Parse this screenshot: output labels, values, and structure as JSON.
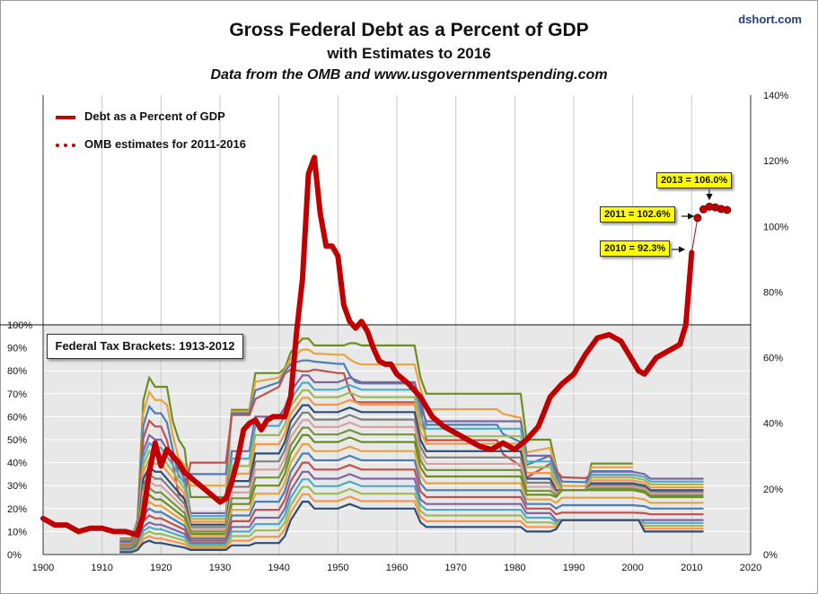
{
  "header": {
    "title": "Gross Federal Debt as a Percent of GDP",
    "subtitle": "with Estimates  to 2016",
    "source": "Data from the OMB and www.usgovernmentspending.com",
    "credit": "dshort.com"
  },
  "legend": {
    "debt_label": "Debt as a Percent of GDP",
    "estimates_label": "OMB estimates for 2011-2016"
  },
  "inset": {
    "label": "Federal Tax Brackets: 1913-2012"
  },
  "callouts": {
    "c2013": "2013 = 106.0%",
    "c2011": "2011 = 102.6%",
    "c2010": "2010 = 92.3%"
  },
  "colors": {
    "debt_line": "#c00000",
    "inset_background": "#e8e8e8"
  },
  "chart_data": [
    {
      "type": "line",
      "title": "Gross Federal Debt as a Percent of GDP",
      "x_ticks": [
        "1900",
        "1910",
        "1920",
        "1930",
        "1940",
        "1950",
        "1960",
        "1970",
        "1980",
        "1990",
        "2000",
        "2010",
        "2020"
      ],
      "y_ticks": [
        "0%",
        "20%",
        "40%",
        "60%",
        "80%",
        "100%",
        "120%",
        "140%"
      ],
      "xlim": [
        1900,
        2020
      ],
      "ylim": [
        0,
        140
      ],
      "y_axis_side": "right",
      "grid": "vertical",
      "legend_position": "top-left",
      "series": [
        {
          "name": "Debt as a Percent of GDP",
          "x": [
            1900,
            1902,
            1904,
            1906,
            1908,
            1910,
            1912,
            1914,
            1916,
            1917,
            1918,
            1919,
            1920,
            1921,
            1922,
            1923,
            1924,
            1926,
            1928,
            1930,
            1931,
            1932,
            1933,
            1934,
            1935,
            1936,
            1937,
            1938,
            1939,
            1940,
            1941,
            1942,
            1943,
            1944,
            1945,
            1946,
            1947,
            1948,
            1949,
            1950,
            1951,
            1952,
            1953,
            1954,
            1955,
            1956,
            1957,
            1958,
            1959,
            1960,
            1962,
            1964,
            1966,
            1968,
            1970,
            1972,
            1974,
            1976,
            1978,
            1980,
            1982,
            1984,
            1986,
            1988,
            1990,
            1992,
            1994,
            1996,
            1998,
            2000,
            2001,
            2002,
            2004,
            2006,
            2007,
            2008,
            2009,
            2010
          ],
          "y": [
            11,
            9,
            9,
            7,
            8,
            8,
            7,
            7,
            6,
            12,
            25,
            34,
            27,
            32,
            30,
            28,
            25,
            22,
            19,
            16,
            17,
            22,
            29,
            38,
            40,
            41,
            38,
            41,
            42,
            42,
            42,
            48,
            68,
            84,
            116,
            121,
            104,
            94,
            94,
            91,
            76,
            71,
            69,
            71,
            68,
            63,
            59,
            58,
            58,
            55,
            52,
            48,
            42,
            39,
            37,
            35,
            33,
            32,
            34,
            32,
            35,
            39,
            48,
            52,
            55,
            61,
            66,
            67,
            65,
            59,
            56,
            55,
            60,
            62,
            63,
            64,
            70,
            92
          ]
        },
        {
          "name": "OMB estimates for 2011-2016",
          "x": [
            2011,
            2012,
            2013,
            2014,
            2015,
            2016
          ],
          "y": [
            102.6,
            105.2,
            106.0,
            105.8,
            105.3,
            105.0
          ]
        }
      ]
    },
    {
      "type": "line",
      "title": "Federal Tax Brackets: 1913-2012",
      "y_ticks": [
        "0%",
        "10%",
        "20%",
        "30%",
        "40%",
        "50%",
        "60%",
        "70%",
        "80%",
        "90%",
        "100%"
      ],
      "xlim": [
        1900,
        2020
      ],
      "ylim": [
        0,
        100
      ],
      "y_axis_side": "left",
      "grid": "horizontal",
      "series": [
        {
          "x": [
            1913,
            1915,
            1916,
            1917,
            1918,
            1919,
            1920,
            1921,
            1922,
            1923,
            1924,
            1925,
            1931,
            1932,
            1935,
            1936,
            1940,
            1941,
            1942,
            1944,
            1945,
            1946,
            1950,
            1951,
            1952,
            1953,
            1954,
            1963,
            1964,
            1965,
            1977,
            1978,
            1981,
            1982,
            1986,
            1987,
            1988,
            1992,
            1993,
            2000,
            2001,
            2002,
            2003,
            2012
          ],
          "y": [
            7,
            7,
            15,
            67,
            77,
            73,
            73,
            73,
            58,
            50,
            46,
            25,
            25,
            63,
            63,
            79,
            79,
            81,
            88,
            94,
            94,
            91,
            91,
            91,
            92,
            92,
            91,
            91,
            77,
            70,
            70,
            70,
            70,
            50,
            50,
            38.5,
            28,
            28,
            39.6,
            39.6,
            39.1,
            38.6,
            35,
            35
          ]
        },
        {
          "x": [
            1913,
            1915,
            1916,
            1917,
            1918,
            1919,
            1920,
            1922,
            1924,
            1925,
            1931,
            1932,
            1935,
            1936,
            1940,
            1941,
            1942,
            1944,
            1945,
            1946,
            1950,
            1952,
            1954,
            1963,
            1964,
            1965,
            1977,
            1978,
            1981,
            1982,
            1986,
            1987,
            1988,
            1992,
            1993,
            2000,
            2001,
            2002,
            2003,
            2012
          ],
          "y": [
            5,
            5,
            10,
            45,
            52,
            50,
            50,
            42,
            33,
            18,
            18,
            45,
            45,
            60,
            60,
            64,
            71,
            78,
            78,
            75,
            75,
            77,
            75,
            75,
            64,
            58,
            58,
            58,
            58,
            43,
            43,
            35,
            28,
            28,
            36,
            36,
            35.5,
            35,
            33,
            33
          ]
        },
        {
          "x": [
            1913,
            1915,
            1916,
            1917,
            1918,
            1919,
            1920,
            1922,
            1924,
            1925,
            1931,
            1932,
            1935,
            1936,
            1940,
            1941,
            1942,
            1944,
            1945,
            1946,
            1950,
            1952,
            1954,
            1963,
            1964,
            1965,
            1977,
            1978,
            1981,
            1982,
            1986,
            1987,
            1988,
            1992,
            1993,
            2000,
            2001,
            2002,
            2003,
            2012
          ],
          "y": [
            4,
            4,
            8,
            33,
            38,
            36,
            36,
            30,
            24,
            13,
            13,
            32,
            32,
            44,
            44,
            49,
            58,
            65,
            65,
            62,
            62,
            64,
            62,
            62,
            50,
            45,
            45,
            45,
            45,
            33,
            33,
            28,
            28,
            28,
            31,
            31,
            30.5,
            30,
            28,
            28
          ]
        },
        {
          "x": [
            1913,
            1915,
            1916,
            1917,
            1918,
            1919,
            1920,
            1922,
            1924,
            1925,
            1931,
            1932,
            1935,
            1936,
            1940,
            1941,
            1942,
            1944,
            1945,
            1946,
            1950,
            1952,
            1954,
            1963,
            1964,
            1965,
            1977,
            1978,
            1981,
            1982,
            1986,
            1987,
            1988,
            1992,
            1993,
            2000,
            2001,
            2002,
            2003,
            2012
          ],
          "y": [
            3,
            3,
            6,
            22,
            26,
            24,
            24,
            20,
            16,
            9,
            9,
            22,
            22,
            30,
            30,
            35,
            44,
            52,
            52,
            49,
            49,
            51,
            49,
            49,
            38,
            34,
            34,
            34,
            34,
            26,
            26,
            25,
            28,
            28,
            28,
            28,
            27.5,
            27,
            25,
            25
          ]
        },
        {
          "x": [
            1913,
            1915,
            1916,
            1917,
            1918,
            1919,
            1920,
            1922,
            1924,
            1925,
            1931,
            1932,
            1935,
            1936,
            1940,
            1941,
            1942,
            1944,
            1945,
            1946,
            1950,
            1952,
            1954,
            1963,
            1964,
            1965,
            1977,
            1978,
            1981,
            1982,
            1986,
            1987,
            1988,
            1992,
            1993,
            2000,
            2001,
            2002,
            2003,
            2012
          ],
          "y": [
            2,
            2,
            4,
            12,
            14,
            13,
            13,
            11,
            9,
            5,
            5,
            12,
            12,
            16,
            16,
            20,
            28,
            36,
            36,
            33,
            33,
            35,
            33,
            33,
            24,
            22,
            22,
            22,
            22,
            18,
            18,
            15,
            15,
            15,
            15,
            15,
            15,
            15,
            15,
            15
          ]
        },
        {
          "x": [
            1913,
            1915,
            1916,
            1917,
            1918,
            1919,
            1920,
            1922,
            1924,
            1925,
            1931,
            1932,
            1935,
            1936,
            1940,
            1941,
            1942,
            1944,
            1945,
            1946,
            1950,
            1952,
            1954,
            1963,
            1964,
            1965,
            1977,
            1978,
            1981,
            1982,
            1986,
            1987,
            1988,
            1992,
            1993,
            2000,
            2001,
            2002,
            2003,
            2012
          ],
          "y": [
            1,
            1,
            2,
            5,
            6,
            5,
            5,
            4,
            3,
            2,
            2,
            4,
            4,
            5,
            5,
            8,
            15,
            23,
            23,
            20,
            20,
            22,
            20,
            20,
            14,
            12,
            12,
            12,
            12,
            10,
            10,
            11,
            15,
            15,
            15,
            15,
            15,
            10,
            10,
            10
          ]
        }
      ]
    }
  ]
}
